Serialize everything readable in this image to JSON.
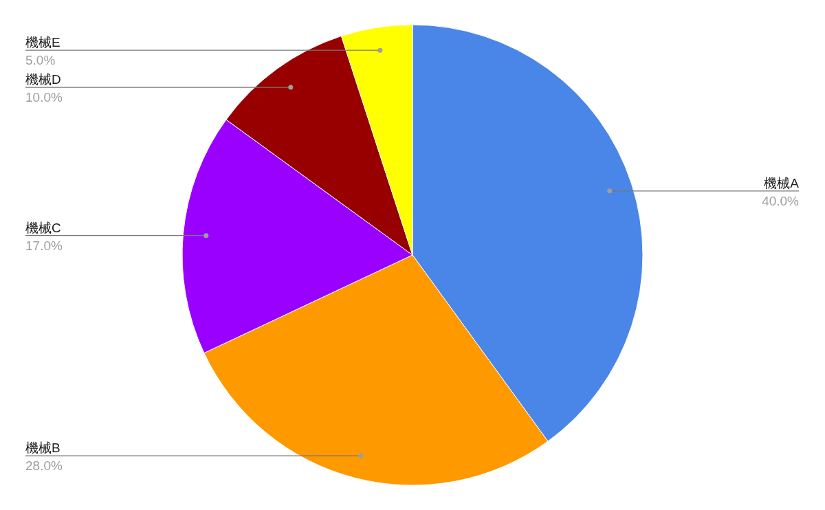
{
  "chart_data": {
    "type": "pie",
    "categories": [
      "機械A",
      "機械B",
      "機械C",
      "機械D",
      "機械E"
    ],
    "values": [
      40,
      28,
      17,
      10,
      5
    ],
    "value_labels": [
      "40.0%",
      "28.0%",
      "17.0%",
      "10.0%",
      "5.0%"
    ],
    "colors": [
      "#4a86e8",
      "#ff9900",
      "#9900ff",
      "#980000",
      "#ffff00"
    ],
    "legend": false
  }
}
